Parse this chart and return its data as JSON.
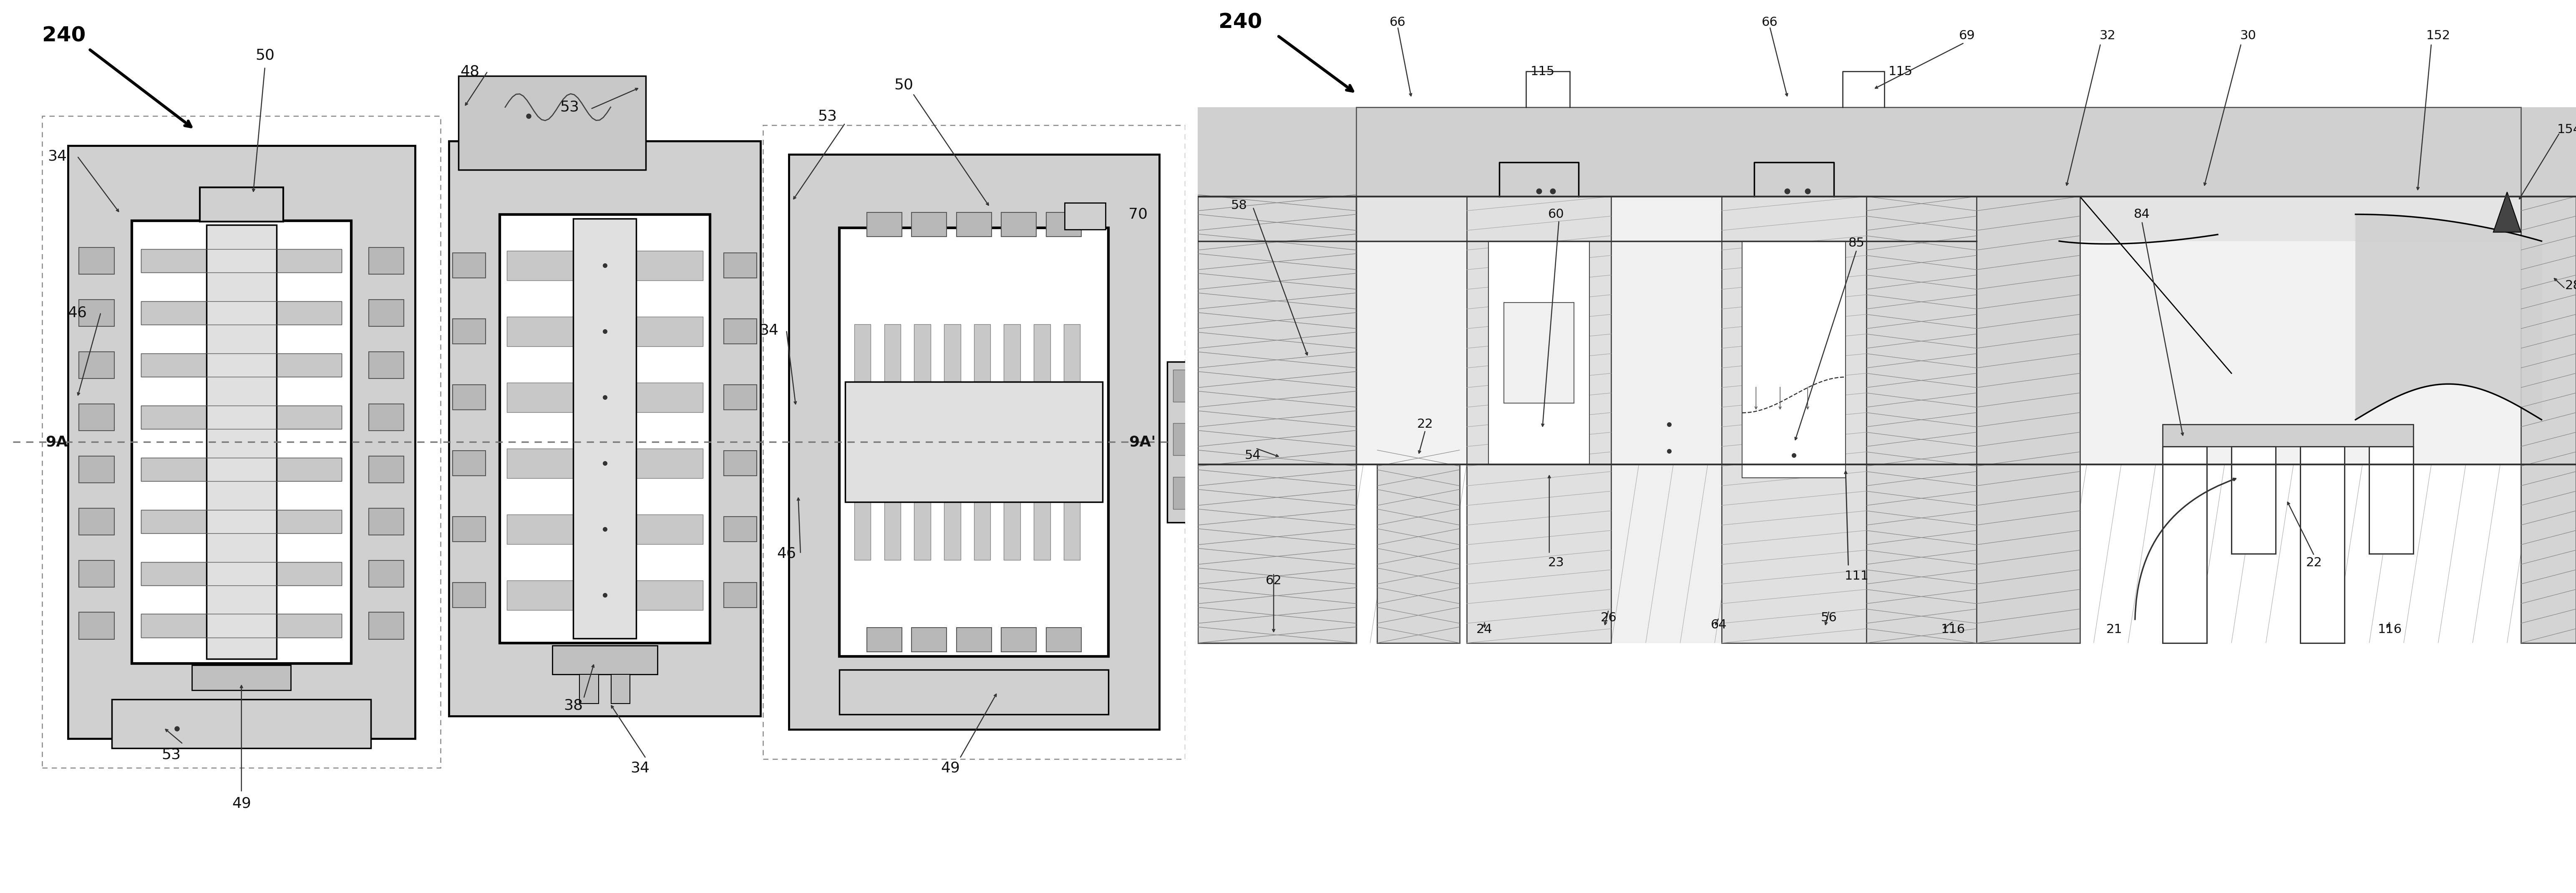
{
  "bg": "#ffffff",
  "lc": "#000000",
  "gray1": "#cccccc",
  "gray2": "#aaaaaa",
  "gray3": "#888888",
  "gray4": "#d8d8d8",
  "hatch_gray": "#999999",
  "fig_w": 61.75,
  "fig_h": 21.4,
  "dpi": 100
}
